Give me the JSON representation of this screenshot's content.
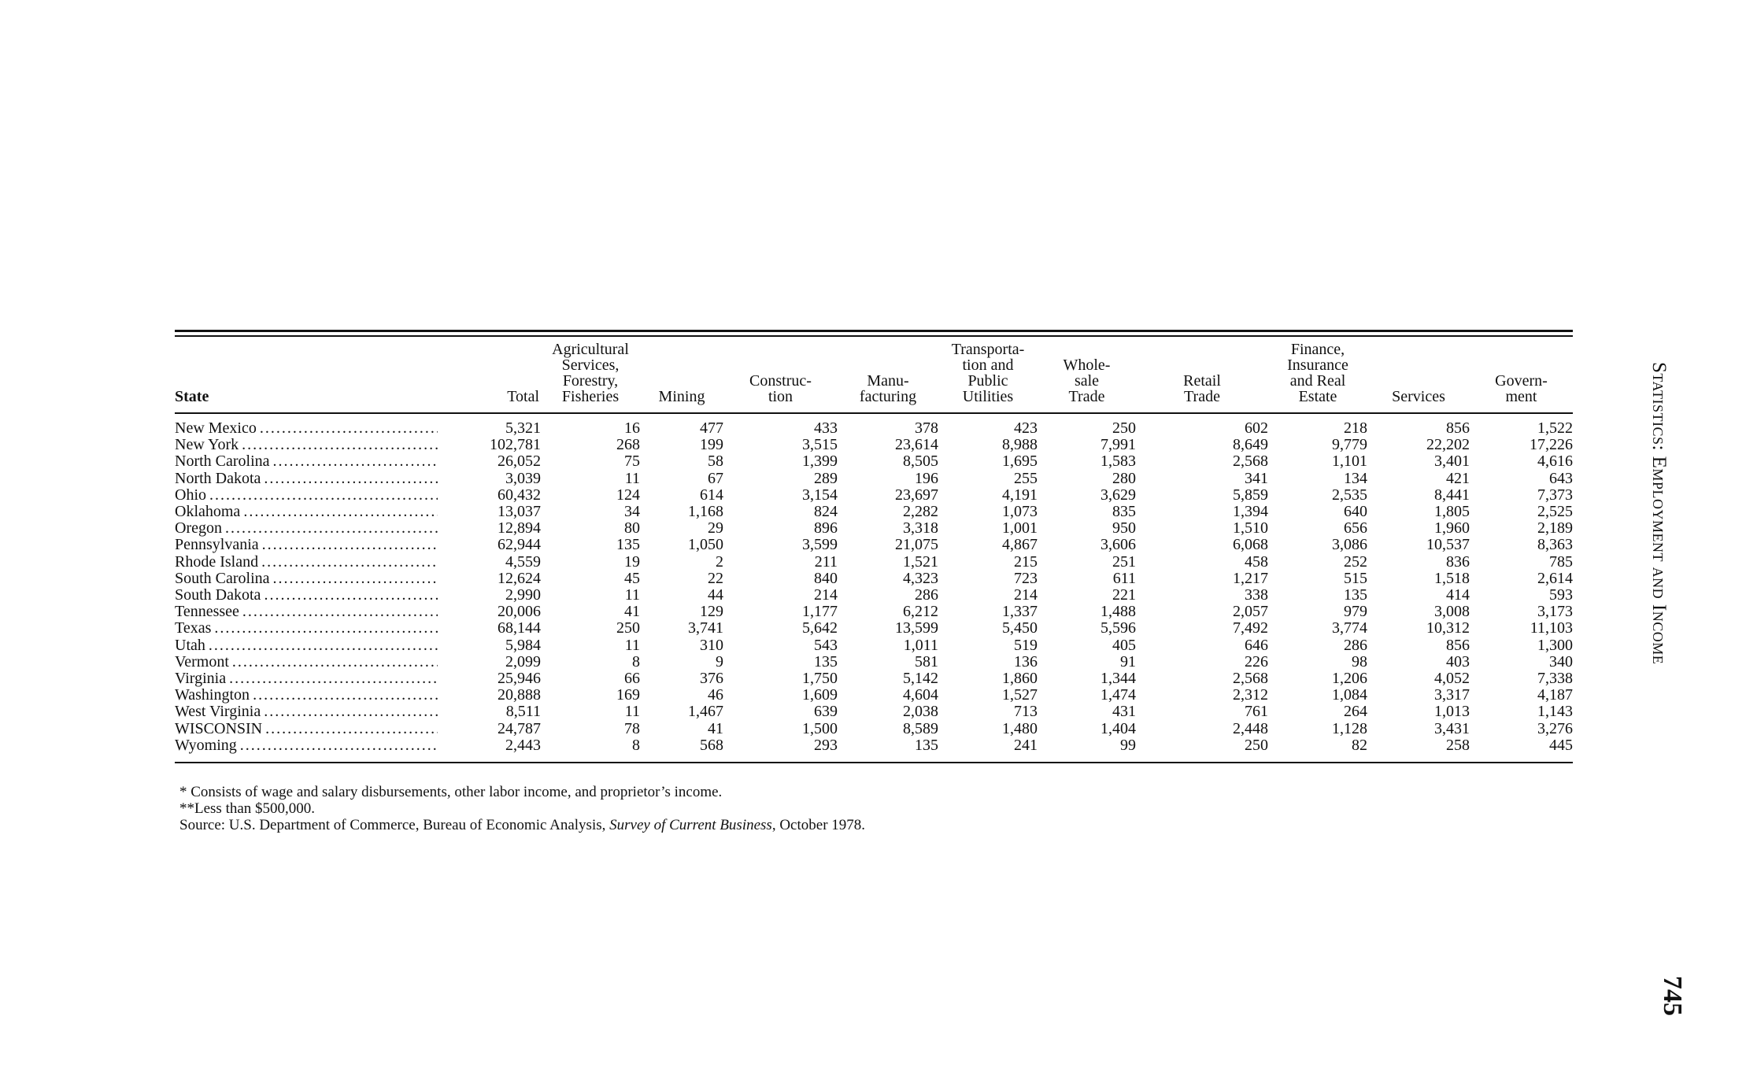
{
  "table": {
    "headers": [
      "State",
      "Total",
      "Agricultural Services, Forestry, Fisheries",
      "Mining",
      "Construc- tion",
      "Manu- facturing",
      "Transporta- tion and Public Utilities",
      "Whole- sale Trade",
      "Retail Trade",
      "Finance, Insurance and Real Estate",
      "Services",
      "Govern- ment"
    ],
    "header_lines": [
      [
        "State"
      ],
      [
        "Total"
      ],
      [
        "Agricultural",
        "Services,",
        "Forestry,",
        "Fisheries"
      ],
      [
        "Mining"
      ],
      [
        "Construc-",
        "tion"
      ],
      [
        "Manu-",
        "facturing"
      ],
      [
        "Transporta-",
        "tion and",
        "Public",
        "Utilities"
      ],
      [
        "Whole-",
        "sale",
        "Trade"
      ],
      [
        "Retail",
        "Trade"
      ],
      [
        "Finance,",
        "Insurance",
        "and Real",
        "Estate"
      ],
      [
        "Services"
      ],
      [
        "Govern-",
        "ment"
      ]
    ],
    "rows": [
      [
        "New Mexico",
        "5,321",
        "16",
        "477",
        "433",
        "378",
        "423",
        "250",
        "602",
        "218",
        "856",
        "1,522"
      ],
      [
        "New York",
        "102,781",
        "268",
        "199",
        "3,515",
        "23,614",
        "8,988",
        "7,991",
        "8,649",
        "9,779",
        "22,202",
        "17,226"
      ],
      [
        "North Carolina",
        "26,052",
        "75",
        "58",
        "1,399",
        "8,505",
        "1,695",
        "1,583",
        "2,568",
        "1,101",
        "3,401",
        "4,616"
      ],
      [
        "North Dakota",
        "3,039",
        "11",
        "67",
        "289",
        "196",
        "255",
        "280",
        "341",
        "134",
        "421",
        "643"
      ],
      [
        "Ohio",
        "60,432",
        "124",
        "614",
        "3,154",
        "23,697",
        "4,191",
        "3,629",
        "5,859",
        "2,535",
        "8,441",
        "7,373"
      ],
      [
        "Oklahoma",
        "13,037",
        "34",
        "1,168",
        "824",
        "2,282",
        "1,073",
        "835",
        "1,394",
        "640",
        "1,805",
        "2,525"
      ],
      [
        "Oregon",
        "12,894",
        "80",
        "29",
        "896",
        "3,318",
        "1,001",
        "950",
        "1,510",
        "656",
        "1,960",
        "2,189"
      ],
      [
        "Pennsylvania",
        "62,944",
        "135",
        "1,050",
        "3,599",
        "21,075",
        "4,867",
        "3,606",
        "6,068",
        "3,086",
        "10,537",
        "8,363"
      ],
      [
        "Rhode Island",
        "4,559",
        "19",
        "2",
        "211",
        "1,521",
        "215",
        "251",
        "458",
        "252",
        "836",
        "785"
      ],
      [
        "South Carolina",
        "12,624",
        "45",
        "22",
        "840",
        "4,323",
        "723",
        "611",
        "1,217",
        "515",
        "1,518",
        "2,614"
      ],
      [
        "South Dakota",
        "2,990",
        "11",
        "44",
        "214",
        "286",
        "214",
        "221",
        "338",
        "135",
        "414",
        "593"
      ],
      [
        "Tennessee",
        "20,006",
        "41",
        "129",
        "1,177",
        "6,212",
        "1,337",
        "1,488",
        "2,057",
        "979",
        "3,008",
        "3,173"
      ],
      [
        "Texas",
        "68,144",
        "250",
        "3,741",
        "5,642",
        "13,599",
        "5,450",
        "5,596",
        "7,492",
        "3,774",
        "10,312",
        "11,103"
      ],
      [
        "Utah",
        "5,984",
        "11",
        "310",
        "543",
        "1,011",
        "519",
        "405",
        "646",
        "286",
        "856",
        "1,300"
      ],
      [
        "Vermont",
        "2,099",
        "8",
        "9",
        "135",
        "581",
        "136",
        "91",
        "226",
        "98",
        "403",
        "340"
      ],
      [
        "Virginia",
        "25,946",
        "66",
        "376",
        "1,750",
        "5,142",
        "1,860",
        "1,344",
        "2,568",
        "1,206",
        "4,052",
        "7,338"
      ],
      [
        "Washington",
        "20,888",
        "169",
        "46",
        "1,609",
        "4,604",
        "1,527",
        "1,474",
        "2,312",
        "1,084",
        "3,317",
        "4,187"
      ],
      [
        "West Virginia",
        "8,511",
        "11",
        "1,467",
        "639",
        "2,038",
        "713",
        "431",
        "761",
        "264",
        "1,013",
        "1,143"
      ],
      [
        "WISCONSIN",
        "24,787",
        "78",
        "41",
        "1,500",
        "8,589",
        "1,480",
        "1,404",
        "2,448",
        "1,128",
        "3,431",
        "3,276"
      ],
      [
        "Wyoming",
        "2,443",
        "8",
        "568",
        "293",
        "135",
        "241",
        "99",
        "250",
        "82",
        "258",
        "445"
      ]
    ]
  },
  "notes": {
    "note1": "* Consists of wage and salary disbursements, other labor income, and proprietor’s income.",
    "note2": "**Less than $500,000.",
    "source_prefix": "Source: U.S. Department of Commerce, Bureau of Economic Analysis, ",
    "source_title": "Survey of Current Business",
    "source_suffix": ", October 1978."
  },
  "running_head": "Statistics: Employment and Income",
  "page_number": "745"
}
